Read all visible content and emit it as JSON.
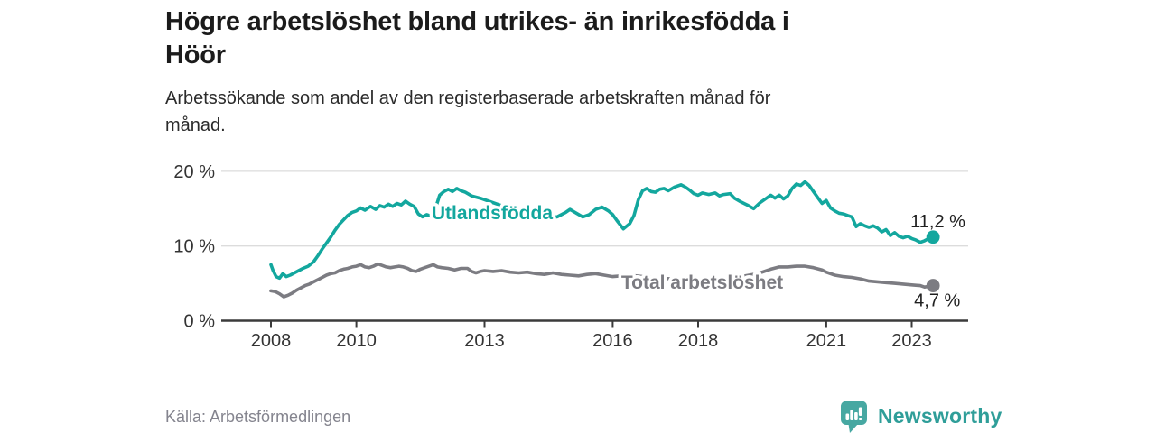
{
  "header": {
    "title_line1": "Högre arbetslöshet bland utrikes- än inrikesfödda i",
    "title_line2": "Höör",
    "subtitle_line1": "Arbetssökande som andel av den registerbaserade arbetskraften månad för",
    "subtitle_line2": "månad."
  },
  "footer": {
    "source": "Källa: Arbetsförmedlingen",
    "brand": "Newsworthy"
  },
  "colors": {
    "accent_teal": "#13a79e",
    "line_gray": "#7c7c82",
    "grid": "#dcdcdc",
    "axis": "#3b3b3b",
    "tick_text": "#333333",
    "annotation_text": "#1f1f1f",
    "muted_text": "#84848e",
    "logo_teal": "#47a8a2",
    "wordmark_teal": "#2f9e99"
  },
  "chart_data": {
    "type": "line",
    "title": "Högre arbetslöshet bland utrikes- än inrikesfödda i Höör",
    "subtitle": "Arbetssökande som andel av den registerbaserade arbetskraften månad för månad.",
    "unit": "%",
    "grid": "horizontal",
    "legend_position": "inline-on-lines",
    "xlim": [
      2006.85,
      2024.3
    ],
    "ylim": [
      0,
      21.2
    ],
    "x_ticks": [
      {
        "year": 2008,
        "label": "2008"
      },
      {
        "year": 2010,
        "label": "2010"
      },
      {
        "year": 2013,
        "label": "2013"
      },
      {
        "year": 2016,
        "label": "2016"
      },
      {
        "year": 2018,
        "label": "2018"
      },
      {
        "year": 2021,
        "label": "2021"
      },
      {
        "year": 2023,
        "label": "2023"
      }
    ],
    "y_ticks": [
      {
        "value": 20,
        "label": "20 %"
      },
      {
        "value": 10,
        "label": "10 %"
      },
      {
        "value": 0,
        "label": "0 %"
      }
    ],
    "series": [
      {
        "name": "Utlandsfödda",
        "color": "#13a79e",
        "end_annotation": "11,2 %",
        "end_value": 11.2,
        "label_anchor": {
          "year": 2011.76,
          "value": 13.6
        },
        "points": [
          [
            2008,
            7.5
          ],
          [
            2008.05,
            6.7
          ],
          [
            2008.12,
            5.9
          ],
          [
            2008.2,
            5.7
          ],
          [
            2008.28,
            6.3
          ],
          [
            2008.36,
            5.9
          ],
          [
            2008.45,
            6.1
          ],
          [
            2008.55,
            6.4
          ],
          [
            2008.65,
            6.7
          ],
          [
            2008.75,
            7.0
          ],
          [
            2008.87,
            7.3
          ],
          [
            2009,
            7.9
          ],
          [
            2009.1,
            8.7
          ],
          [
            2009.2,
            9.6
          ],
          [
            2009.3,
            10.4
          ],
          [
            2009.4,
            11.2
          ],
          [
            2009.5,
            12.1
          ],
          [
            2009.6,
            12.9
          ],
          [
            2009.7,
            13.5
          ],
          [
            2009.8,
            14.1
          ],
          [
            2009.9,
            14.5
          ],
          [
            2010,
            14.7
          ],
          [
            2010.1,
            15.1
          ],
          [
            2010.2,
            14.8
          ],
          [
            2010.33,
            15.3
          ],
          [
            2010.45,
            14.9
          ],
          [
            2010.55,
            15.4
          ],
          [
            2010.65,
            15.2
          ],
          [
            2010.75,
            15.6
          ],
          [
            2010.85,
            15.3
          ],
          [
            2010.95,
            15.7
          ],
          [
            2011.05,
            15.5
          ],
          [
            2011.15,
            16.0
          ],
          [
            2011.25,
            15.6
          ],
          [
            2011.35,
            15.3
          ],
          [
            2011.45,
            14.3
          ],
          [
            2011.55,
            13.9
          ],
          [
            2011.65,
            14.2
          ],
          [
            2011.75,
            14.0
          ],
          [
            2011.85,
            15.0
          ],
          [
            2011.95,
            16.8
          ],
          [
            2012.05,
            17.3
          ],
          [
            2012.15,
            17.6
          ],
          [
            2012.25,
            17.3
          ],
          [
            2012.35,
            17.7
          ],
          [
            2012.45,
            17.4
          ],
          [
            2012.55,
            17.2
          ],
          [
            2012.7,
            16.7
          ],
          [
            2012.9,
            16.4
          ],
          [
            2013.1,
            16.0
          ],
          [
            2013.3,
            15.6
          ],
          [
            2013.5,
            15.2
          ],
          [
            2013.7,
            14.8
          ],
          [
            2013.9,
            14.5
          ],
          [
            2014.1,
            14.2
          ],
          [
            2014.3,
            14.0
          ],
          [
            2014.5,
            13.9
          ],
          [
            2014.7,
            13.9
          ],
          [
            2014.9,
            14.5
          ],
          [
            2015,
            14.9
          ],
          [
            2015.15,
            14.4
          ],
          [
            2015.3,
            13.9
          ],
          [
            2015.45,
            14.2
          ],
          [
            2015.6,
            14.9
          ],
          [
            2015.75,
            15.2
          ],
          [
            2015.9,
            14.7
          ],
          [
            2016,
            14.2
          ],
          [
            2016.1,
            13.4
          ],
          [
            2016.25,
            12.3
          ],
          [
            2016.4,
            13.0
          ],
          [
            2016.5,
            14.1
          ],
          [
            2016.6,
            16.2
          ],
          [
            2016.7,
            17.4
          ],
          [
            2016.8,
            17.7
          ],
          [
            2016.9,
            17.3
          ],
          [
            2017,
            17.2
          ],
          [
            2017.1,
            17.6
          ],
          [
            2017.2,
            17.7
          ],
          [
            2017.3,
            17.4
          ],
          [
            2017.45,
            17.9
          ],
          [
            2017.6,
            18.2
          ],
          [
            2017.7,
            17.9
          ],
          [
            2017.8,
            17.5
          ],
          [
            2017.9,
            17.0
          ],
          [
            2018,
            16.8
          ],
          [
            2018.1,
            17.1
          ],
          [
            2018.25,
            16.9
          ],
          [
            2018.4,
            17.1
          ],
          [
            2018.5,
            16.7
          ],
          [
            2018.6,
            16.9
          ],
          [
            2018.75,
            17.0
          ],
          [
            2018.85,
            16.4
          ],
          [
            2019,
            15.9
          ],
          [
            2019.15,
            15.5
          ],
          [
            2019.3,
            15.0
          ],
          [
            2019.45,
            15.8
          ],
          [
            2019.6,
            16.4
          ],
          [
            2019.7,
            16.8
          ],
          [
            2019.8,
            16.4
          ],
          [
            2019.9,
            16.8
          ],
          [
            2020,
            16.3
          ],
          [
            2020.1,
            16.7
          ],
          [
            2020.2,
            17.7
          ],
          [
            2020.3,
            18.3
          ],
          [
            2020.4,
            18.1
          ],
          [
            2020.5,
            18.6
          ],
          [
            2020.6,
            18.1
          ],
          [
            2020.7,
            17.3
          ],
          [
            2020.8,
            16.5
          ],
          [
            2020.9,
            15.7
          ],
          [
            2021,
            16.1
          ],
          [
            2021.1,
            15.1
          ],
          [
            2021.2,
            14.7
          ],
          [
            2021.3,
            14.4
          ],
          [
            2021.4,
            14.3
          ],
          [
            2021.5,
            14.1
          ],
          [
            2021.6,
            13.9
          ],
          [
            2021.7,
            12.6
          ],
          [
            2021.8,
            13.0
          ],
          [
            2021.9,
            12.7
          ],
          [
            2022,
            12.5
          ],
          [
            2022.1,
            12.7
          ],
          [
            2022.2,
            12.4
          ],
          [
            2022.3,
            11.9
          ],
          [
            2022.4,
            12.2
          ],
          [
            2022.5,
            11.4
          ],
          [
            2022.6,
            11.8
          ],
          [
            2022.7,
            11.3
          ],
          [
            2022.8,
            11.1
          ],
          [
            2022.9,
            11.3
          ],
          [
            2023,
            11.0
          ],
          [
            2023.1,
            10.8
          ],
          [
            2023.2,
            10.5
          ],
          [
            2023.3,
            10.7
          ],
          [
            2023.4,
            11.0
          ],
          [
            2023.5,
            11.2
          ]
        ]
      },
      {
        "name": "Total arbetslöshet",
        "color": "#7c7c82",
        "end_annotation": "4,7 %",
        "end_value": 4.7,
        "label_anchor": {
          "year": 2016.2,
          "value": 4.3
        },
        "points": [
          [
            2008,
            4.0
          ],
          [
            2008.1,
            3.9
          ],
          [
            2008.2,
            3.6
          ],
          [
            2008.3,
            3.2
          ],
          [
            2008.4,
            3.4
          ],
          [
            2008.5,
            3.7
          ],
          [
            2008.6,
            4.1
          ],
          [
            2008.7,
            4.4
          ],
          [
            2008.8,
            4.7
          ],
          [
            2008.9,
            4.9
          ],
          [
            2009,
            5.2
          ],
          [
            2009.1,
            5.5
          ],
          [
            2009.2,
            5.8
          ],
          [
            2009.3,
            6.1
          ],
          [
            2009.4,
            6.3
          ],
          [
            2009.5,
            6.4
          ],
          [
            2009.6,
            6.7
          ],
          [
            2009.7,
            6.9
          ],
          [
            2009.8,
            7.0
          ],
          [
            2009.9,
            7.2
          ],
          [
            2010,
            7.3
          ],
          [
            2010.1,
            7.5
          ],
          [
            2010.2,
            7.2
          ],
          [
            2010.3,
            7.1
          ],
          [
            2010.4,
            7.3
          ],
          [
            2010.5,
            7.6
          ],
          [
            2010.6,
            7.4
          ],
          [
            2010.7,
            7.2
          ],
          [
            2010.8,
            7.1
          ],
          [
            2010.9,
            7.2
          ],
          [
            2011,
            7.3
          ],
          [
            2011.1,
            7.2
          ],
          [
            2011.2,
            7.0
          ],
          [
            2011.3,
            6.7
          ],
          [
            2011.4,
            6.6
          ],
          [
            2011.5,
            6.9
          ],
          [
            2011.6,
            7.1
          ],
          [
            2011.7,
            7.3
          ],
          [
            2011.8,
            7.5
          ],
          [
            2011.9,
            7.2
          ],
          [
            2012,
            7.1
          ],
          [
            2012.15,
            7.0
          ],
          [
            2012.3,
            6.8
          ],
          [
            2012.45,
            7.0
          ],
          [
            2012.6,
            7.0
          ],
          [
            2012.7,
            6.6
          ],
          [
            2012.8,
            6.4
          ],
          [
            2012.9,
            6.6
          ],
          [
            2013,
            6.7
          ],
          [
            2013.2,
            6.6
          ],
          [
            2013.4,
            6.7
          ],
          [
            2013.6,
            6.5
          ],
          [
            2013.8,
            6.4
          ],
          [
            2014,
            6.5
          ],
          [
            2014.2,
            6.3
          ],
          [
            2014.4,
            6.2
          ],
          [
            2014.6,
            6.4
          ],
          [
            2014.8,
            6.2
          ],
          [
            2015,
            6.1
          ],
          [
            2015.2,
            6.0
          ],
          [
            2015.4,
            6.2
          ],
          [
            2015.6,
            6.3
          ],
          [
            2015.8,
            6.1
          ],
          [
            2016,
            5.9
          ],
          [
            2016.2,
            6.0
          ],
          [
            2016.4,
            6.1
          ],
          [
            2016.7,
            5.9
          ],
          [
            2017,
            5.7
          ],
          [
            2017.4,
            5.6
          ],
          [
            2017.8,
            5.5
          ],
          [
            2018.2,
            5.6
          ],
          [
            2018.6,
            5.7
          ],
          [
            2019,
            5.9
          ],
          [
            2019.4,
            6.3
          ],
          [
            2019.7,
            6.9
          ],
          [
            2019.9,
            7.2
          ],
          [
            2020.1,
            7.2
          ],
          [
            2020.3,
            7.3
          ],
          [
            2020.5,
            7.3
          ],
          [
            2020.7,
            7.1
          ],
          [
            2020.9,
            6.8
          ],
          [
            2021,
            6.5
          ],
          [
            2021.2,
            6.1
          ],
          [
            2021.4,
            5.9
          ],
          [
            2021.6,
            5.8
          ],
          [
            2021.8,
            5.6
          ],
          [
            2022,
            5.3
          ],
          [
            2022.2,
            5.2
          ],
          [
            2022.4,
            5.1
          ],
          [
            2022.6,
            5.0
          ],
          [
            2022.8,
            4.9
          ],
          [
            2023,
            4.8
          ],
          [
            2023.2,
            4.7
          ],
          [
            2023.3,
            4.5
          ],
          [
            2023.4,
            4.6
          ],
          [
            2023.5,
            4.7
          ]
        ]
      }
    ],
    "source": "Källa: Arbetsförmedlingen"
  }
}
